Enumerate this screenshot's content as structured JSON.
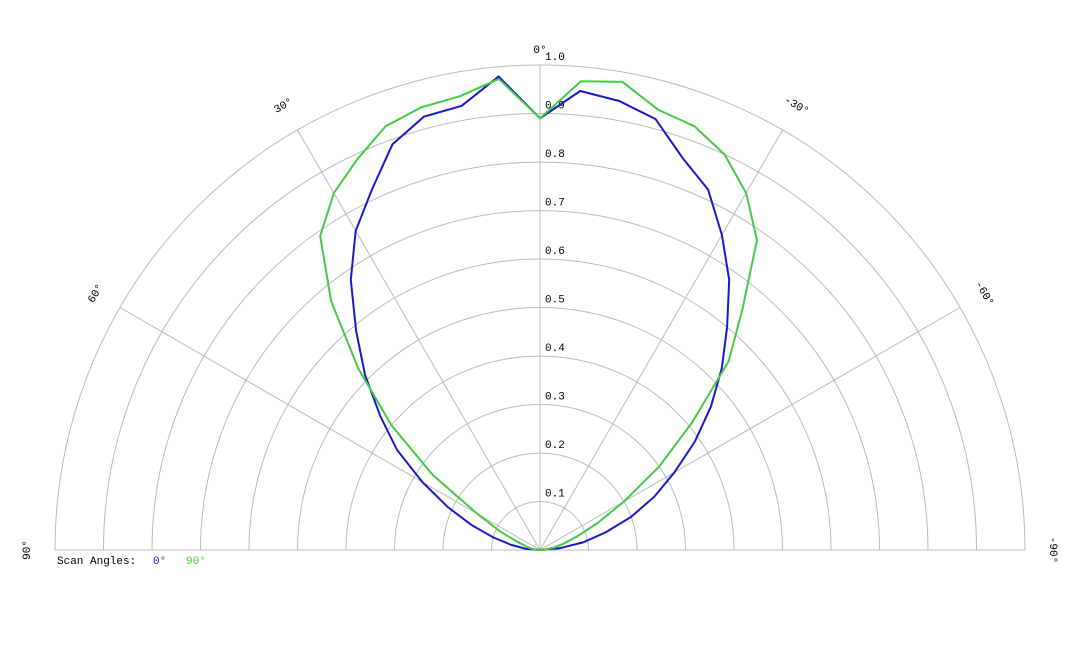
{
  "chart_data": {
    "type": "polar",
    "x": [
      -90,
      -85,
      -80,
      -75,
      -70,
      -65,
      -60,
      -55,
      -50,
      -45,
      -40,
      -35,
      -30,
      -25,
      -20,
      -15,
      -10,
      -5,
      0,
      5,
      10,
      15,
      20,
      25,
      30,
      35,
      40,
      45,
      50,
      55,
      60,
      65,
      70,
      75,
      80,
      85,
      90
    ],
    "series": [
      {
        "name": "0°",
        "color": "#1a1acc",
        "values": [
          0,
          0.04,
          0.09,
          0.14,
          0.2,
          0.26,
          0.32,
          0.39,
          0.46,
          0.53,
          0.6,
          0.68,
          0.75,
          0.82,
          0.86,
          0.92,
          0.94,
          0.95,
          0.89,
          0.98,
          0.93,
          0.925,
          0.89,
          0.82,
          0.76,
          0.68,
          0.59,
          0.51,
          0.43,
          0.36,
          0.28,
          0.21,
          0.15,
          0.1,
          0.06,
          0.03,
          0
        ]
      },
      {
        "name": "90°",
        "color": "#44cc44",
        "values": [
          0,
          0.01,
          0.03,
          0.05,
          0.08,
          0.13,
          0.2,
          0.3,
          0.41,
          0.55,
          0.65,
          0.78,
          0.85,
          0.9,
          0.93,
          0.94,
          0.98,
          0.97,
          0.89,
          0.975,
          0.95,
          0.945,
          0.93,
          0.89,
          0.85,
          0.79,
          0.67,
          0.53,
          0.4,
          0.27,
          0.15,
          0.09,
          0.05,
          0.03,
          0.02,
          0.01,
          0
        ]
      }
    ],
    "legend_title": "Scan Angles:",
    "rlim": [
      0,
      1
    ],
    "rticks": [
      0.1,
      0.2,
      0.3,
      0.4,
      0.5,
      0.6,
      0.7,
      0.8,
      0.9,
      {
        "value": 1,
        "label": "1.0"
      }
    ],
    "xlim": [
      -90,
      90
    ],
    "xticks": [
      {
        "value": -90,
        "label": "-90°"
      },
      {
        "value": -60,
        "label": "-60°"
      },
      {
        "value": -30,
        "label": "-30°"
      },
      {
        "value": 0,
        "label": "0°"
      },
      {
        "value": 30,
        "label": "30°"
      },
      {
        "value": 60,
        "label": "60°"
      },
      {
        "value": 90,
        "label": "90°"
      }
    ],
    "grid": true
  }
}
